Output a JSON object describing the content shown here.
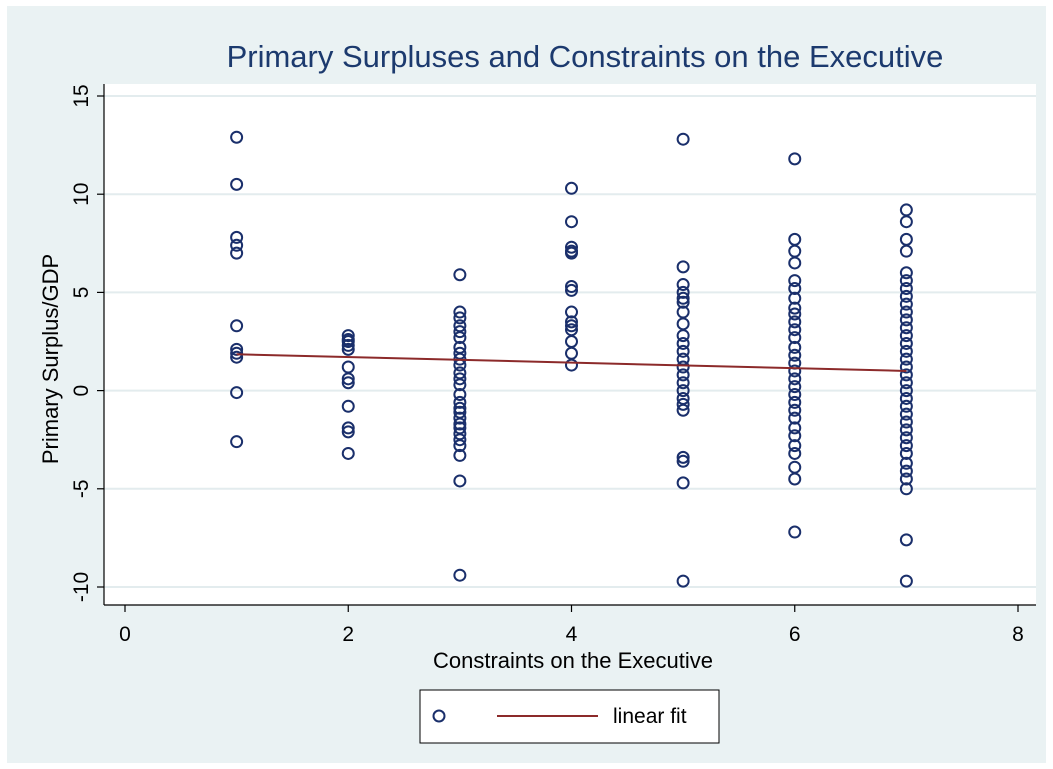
{
  "chart_data": {
    "type": "scatter",
    "title": "Primary Surpluses and Constraints on the Executive",
    "xlabel": "Constraints on the Executive",
    "ylabel": "Primary Surplus/GDP",
    "xlim": [
      0,
      8
    ],
    "ylim": [
      -10,
      15
    ],
    "x_ticks": [
      0,
      2,
      4,
      6,
      8
    ],
    "y_ticks": [
      -10,
      -5,
      0,
      5,
      10,
      15
    ],
    "grid": true,
    "legend_placement": "bottom",
    "series": [
      {
        "marker": "hollow-circle",
        "color": "#1a2f6b",
        "points": [
          [
            1,
            12.9
          ],
          [
            1,
            10.5
          ],
          [
            1,
            7.8
          ],
          [
            1,
            7.4
          ],
          [
            1,
            7.0
          ],
          [
            1,
            3.3
          ],
          [
            1,
            2.1
          ],
          [
            1,
            1.9
          ],
          [
            1,
            1.7
          ],
          [
            1,
            -0.1
          ],
          [
            1,
            -2.6
          ],
          [
            2,
            2.8
          ],
          [
            2,
            2.6
          ],
          [
            2,
            2.5
          ],
          [
            2,
            2.3
          ],
          [
            2,
            2.1
          ],
          [
            2,
            1.2
          ],
          [
            2,
            0.6
          ],
          [
            2,
            0.4
          ],
          [
            2,
            -0.8
          ],
          [
            2,
            -1.9
          ],
          [
            2,
            -2.1
          ],
          [
            2,
            -3.2
          ],
          [
            3,
            5.9
          ],
          [
            3,
            4.0
          ],
          [
            3,
            3.7
          ],
          [
            3,
            3.3
          ],
          [
            3,
            3.0
          ],
          [
            3,
            2.7
          ],
          [
            3,
            2.2
          ],
          [
            3,
            1.9
          ],
          [
            3,
            1.6
          ],
          [
            3,
            1.3
          ],
          [
            3,
            0.9
          ],
          [
            3,
            0.6
          ],
          [
            3,
            0.3
          ],
          [
            3,
            -0.2
          ],
          [
            3,
            -0.6
          ],
          [
            3,
            -0.9
          ],
          [
            3,
            -1.1
          ],
          [
            3,
            -1.4
          ],
          [
            3,
            -1.7
          ],
          [
            3,
            -1.9
          ],
          [
            3,
            -2.2
          ],
          [
            3,
            -2.5
          ],
          [
            3,
            -2.8
          ],
          [
            3,
            -3.3
          ],
          [
            3,
            -4.6
          ],
          [
            3,
            -9.4
          ],
          [
            4,
            10.3
          ],
          [
            4,
            8.6
          ],
          [
            4,
            7.3
          ],
          [
            4,
            7.1
          ],
          [
            4,
            7.0
          ],
          [
            4,
            5.3
          ],
          [
            4,
            5.1
          ],
          [
            4,
            4.0
          ],
          [
            4,
            3.5
          ],
          [
            4,
            3.3
          ],
          [
            4,
            3.1
          ],
          [
            4,
            2.5
          ],
          [
            4,
            1.9
          ],
          [
            4,
            1.3
          ],
          [
            5,
            12.8
          ],
          [
            5,
            6.3
          ],
          [
            5,
            5.4
          ],
          [
            5,
            5.0
          ],
          [
            5,
            4.7
          ],
          [
            5,
            4.5
          ],
          [
            5,
            4.0
          ],
          [
            5,
            3.4
          ],
          [
            5,
            2.8
          ],
          [
            5,
            2.4
          ],
          [
            5,
            2.0
          ],
          [
            5,
            1.6
          ],
          [
            5,
            1.2
          ],
          [
            5,
            0.8
          ],
          [
            5,
            0.4
          ],
          [
            5,
            0.0
          ],
          [
            5,
            -0.4
          ],
          [
            5,
            -0.7
          ],
          [
            5,
            -1.0
          ],
          [
            5,
            -3.4
          ],
          [
            5,
            -3.6
          ],
          [
            5,
            -4.7
          ],
          [
            5,
            -9.7
          ],
          [
            6,
            11.8
          ],
          [
            6,
            7.7
          ],
          [
            6,
            7.1
          ],
          [
            6,
            6.5
          ],
          [
            6,
            5.6
          ],
          [
            6,
            5.2
          ],
          [
            6,
            4.7
          ],
          [
            6,
            4.2
          ],
          [
            6,
            3.9
          ],
          [
            6,
            3.5
          ],
          [
            6,
            3.1
          ],
          [
            6,
            2.7
          ],
          [
            6,
            2.2
          ],
          [
            6,
            1.8
          ],
          [
            6,
            1.4
          ],
          [
            6,
            1.0
          ],
          [
            6,
            0.6
          ],
          [
            6,
            0.2
          ],
          [
            6,
            -0.2
          ],
          [
            6,
            -0.6
          ],
          [
            6,
            -1.0
          ],
          [
            6,
            -1.4
          ],
          [
            6,
            -1.9
          ],
          [
            6,
            -2.3
          ],
          [
            6,
            -2.8
          ],
          [
            6,
            -3.2
          ],
          [
            6,
            -3.9
          ],
          [
            6,
            -4.5
          ],
          [
            6,
            -7.2
          ],
          [
            7,
            9.2
          ],
          [
            7,
            8.6
          ],
          [
            7,
            7.7
          ],
          [
            7,
            7.1
          ],
          [
            7,
            6.0
          ],
          [
            7,
            5.6
          ],
          [
            7,
            5.2
          ],
          [
            7,
            4.8
          ],
          [
            7,
            4.4
          ],
          [
            7,
            4.0
          ],
          [
            7,
            3.6
          ],
          [
            7,
            3.2
          ],
          [
            7,
            2.8
          ],
          [
            7,
            2.4
          ],
          [
            7,
            2.0
          ],
          [
            7,
            1.6
          ],
          [
            7,
            1.2
          ],
          [
            7,
            0.8
          ],
          [
            7,
            0.4
          ],
          [
            7,
            0.0
          ],
          [
            7,
            -0.4
          ],
          [
            7,
            -0.8
          ],
          [
            7,
            -1.2
          ],
          [
            7,
            -1.6
          ],
          [
            7,
            -2.0
          ],
          [
            7,
            -2.4
          ],
          [
            7,
            -2.8
          ],
          [
            7,
            -3.2
          ],
          [
            7,
            -3.7
          ],
          [
            7,
            -4.1
          ],
          [
            7,
            -4.5
          ],
          [
            7,
            -5.0
          ],
          [
            7,
            -7.6
          ],
          [
            7,
            -9.7
          ]
        ]
      },
      {
        "name": "linear fit",
        "type": "line",
        "color": "#8c2a2a",
        "points": [
          [
            1,
            1.85
          ],
          [
            7,
            1.0
          ]
        ]
      }
    ]
  },
  "colors": {
    "frame_background": "#eaf2f3",
    "plot_background": "#ffffff",
    "gridline": "#e3ecee",
    "title": "#1c3a6e",
    "marker": "#1a2f6b",
    "fit_line": "#8c2a2a"
  }
}
